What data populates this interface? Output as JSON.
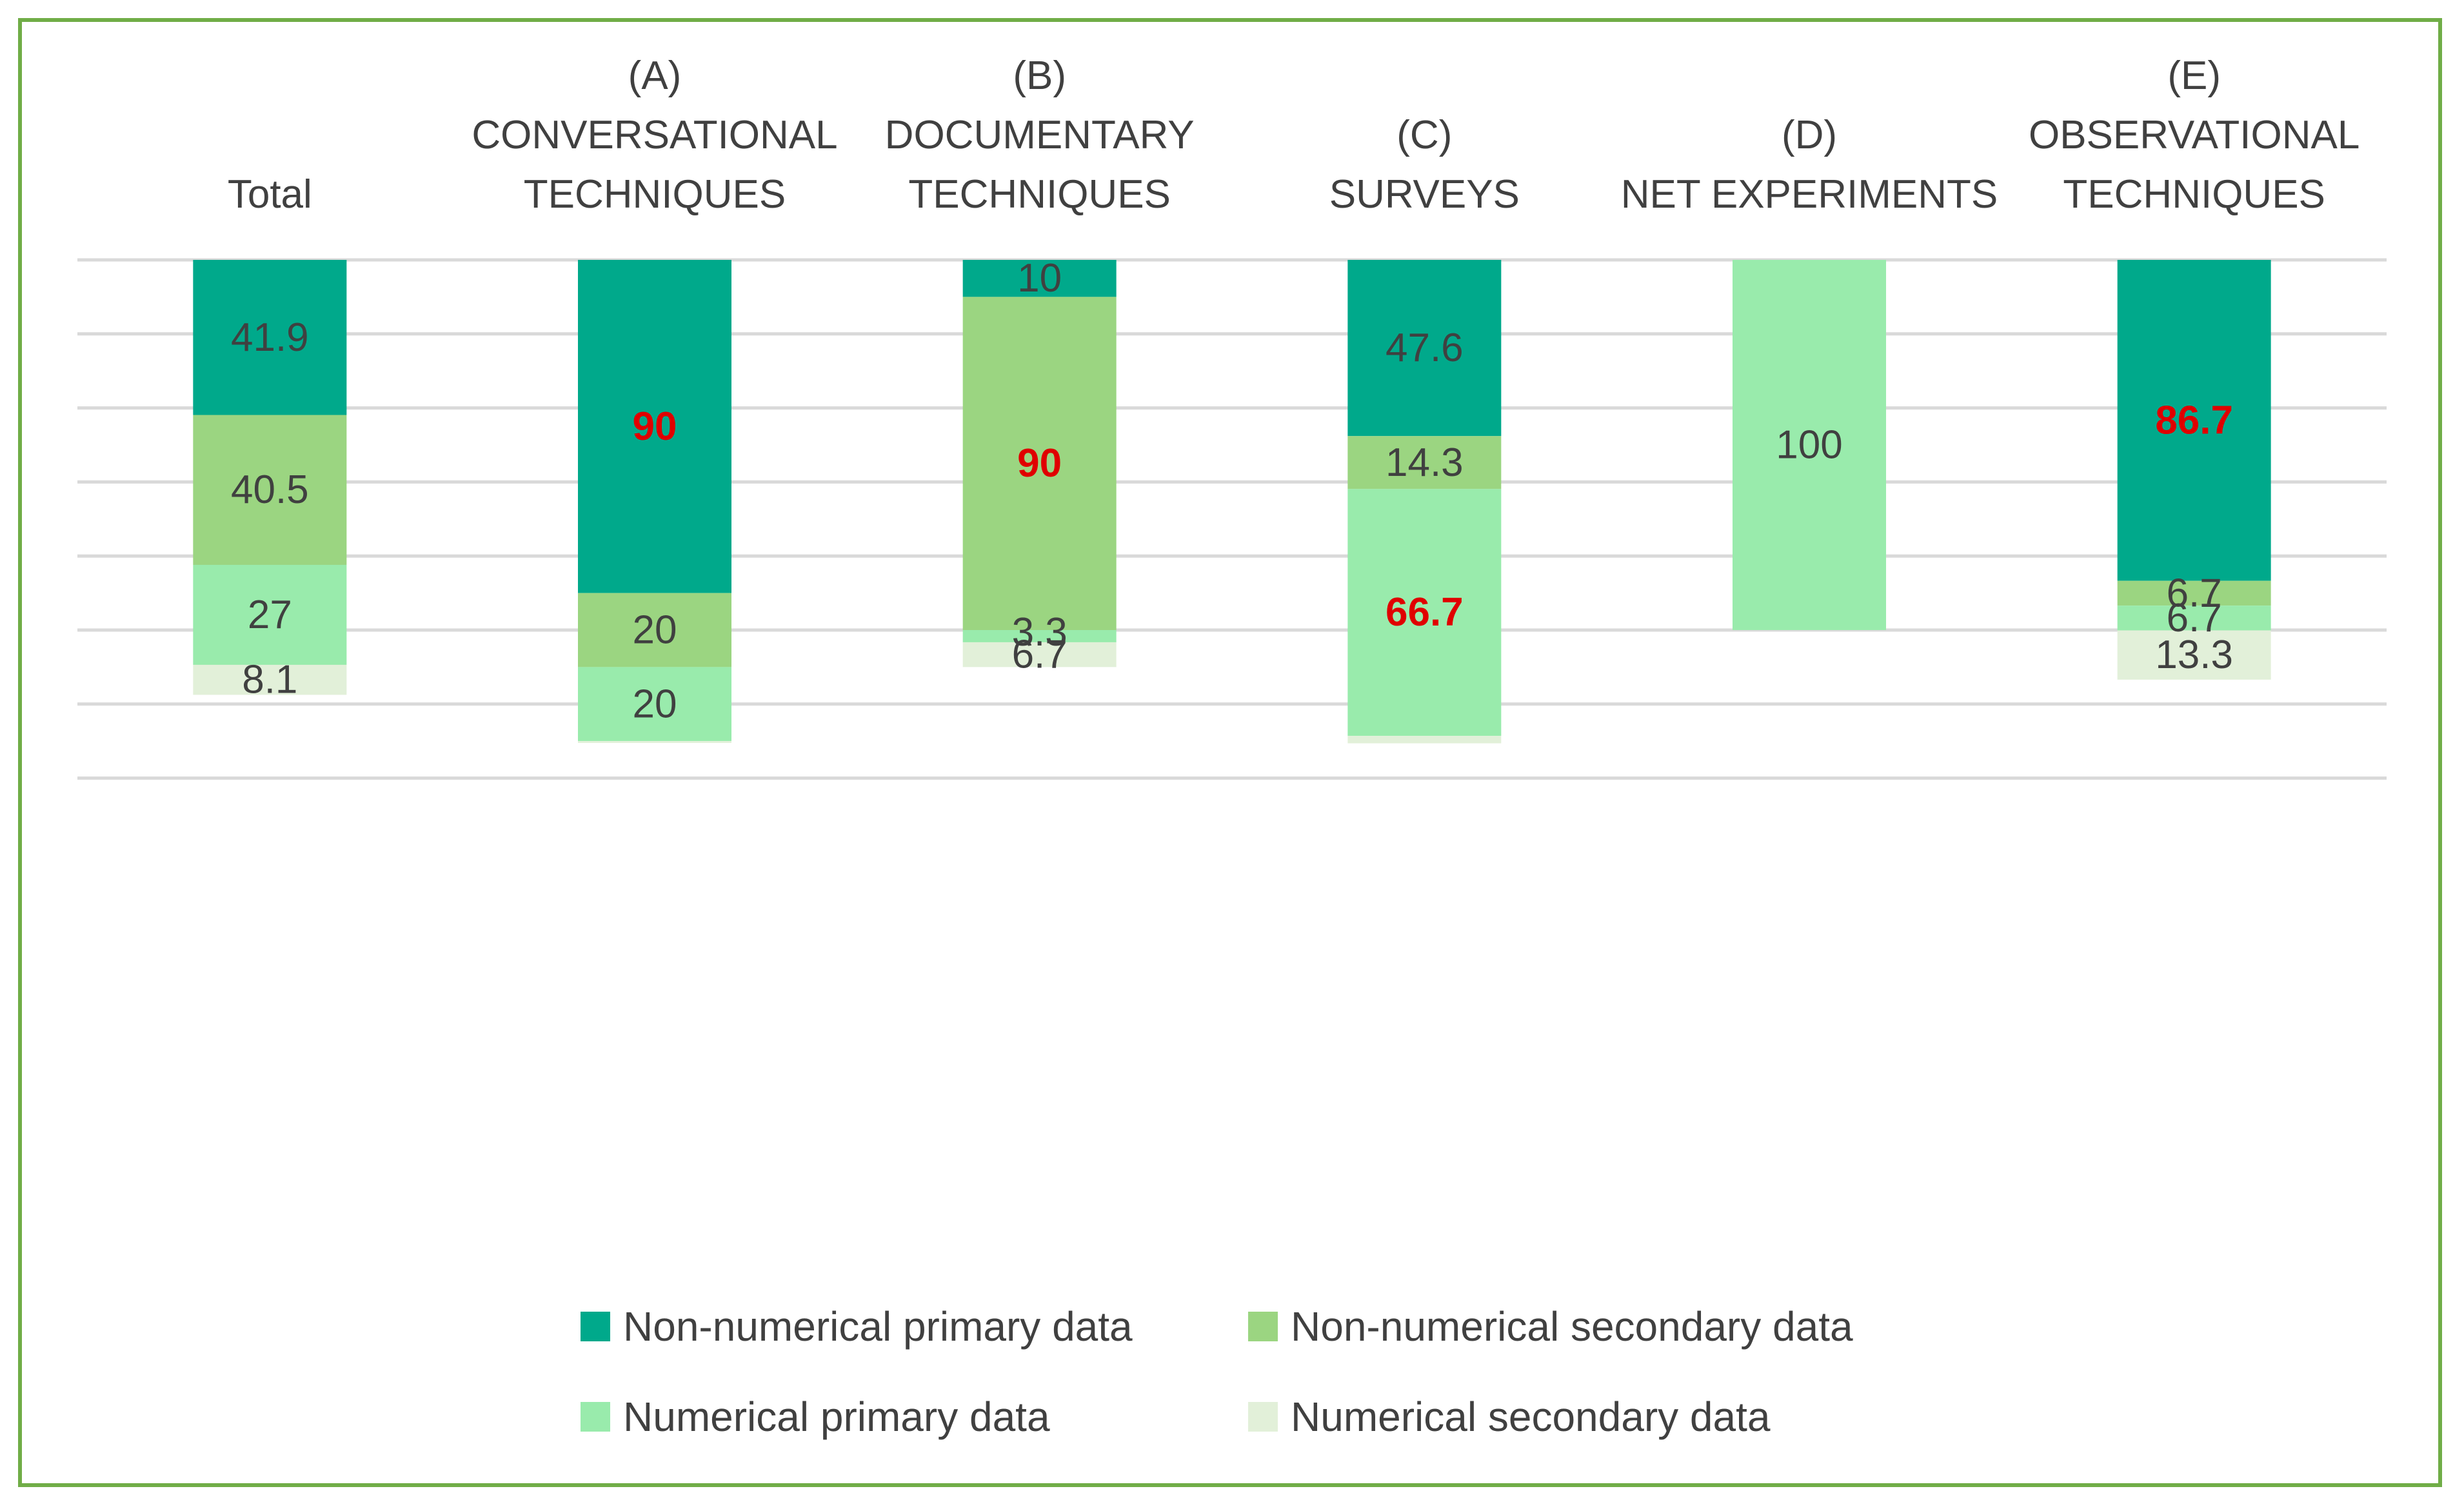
{
  "colors": {
    "frame": "#70ad47",
    "grid": "#d9d9d9",
    "text": "#404040",
    "highlight": "#e00000"
  },
  "chart_data": {
    "type": "bar",
    "stacked": true,
    "orientation": "vertical",
    "categories": [
      [
        "Total"
      ],
      [
        "(A)",
        "CONVERSATIONAL",
        "TECHNIQUES"
      ],
      [
        "(B)",
        "DOCUMENTARY",
        "TECHNIQUES"
      ],
      [
        "(C)",
        "SURVEYS"
      ],
      [
        "(D)",
        "NET EXPERIMENTS"
      ],
      [
        "(E)",
        "OBSERVATIONAL",
        "TECHNIQUES"
      ]
    ],
    "category_labels_position": "top",
    "series": [
      {
        "name": "Non-numerical primary data",
        "color": "#00a98b",
        "values": [
          41.9,
          90,
          10,
          47.6,
          0,
          86.7
        ]
      },
      {
        "name": "Non-numerical secondary data",
        "color": "#9bd581",
        "values": [
          40.5,
          20,
          90,
          14.3,
          0,
          6.7
        ]
      },
      {
        "name": "Numerical primary data",
        "color": "#99ebac",
        "values": [
          27,
          20,
          3.3,
          66.7,
          100,
          6.7
        ]
      },
      {
        "name": "Numerical secondary data",
        "color": "#e2f0d9",
        "values": [
          8.1,
          0.5,
          6.7,
          2,
          0,
          13.3
        ]
      }
    ],
    "data_labels": [
      [
        "41.9",
        "90",
        "10",
        "47.6",
        "",
        "86.7"
      ],
      [
        "40.5",
        "20",
        "90",
        "14.3",
        "",
        "6.7"
      ],
      [
        "27",
        "20",
        "3.3",
        "66.7",
        "100",
        "6.7"
      ],
      [
        "8.1",
        "",
        "6.7",
        "",
        "",
        "13.3"
      ]
    ],
    "highlighted_labels": [
      [
        0,
        1
      ],
      [
        1,
        2
      ],
      [
        2,
        3
      ],
      [
        0,
        5
      ]
    ],
    "value_axis": {
      "min": 0,
      "max": 140,
      "gridline_step": 20,
      "direction": "downward",
      "tick_labels_shown": false
    },
    "grid": true,
    "legend": {
      "position": "bottom",
      "columns": 2
    }
  }
}
